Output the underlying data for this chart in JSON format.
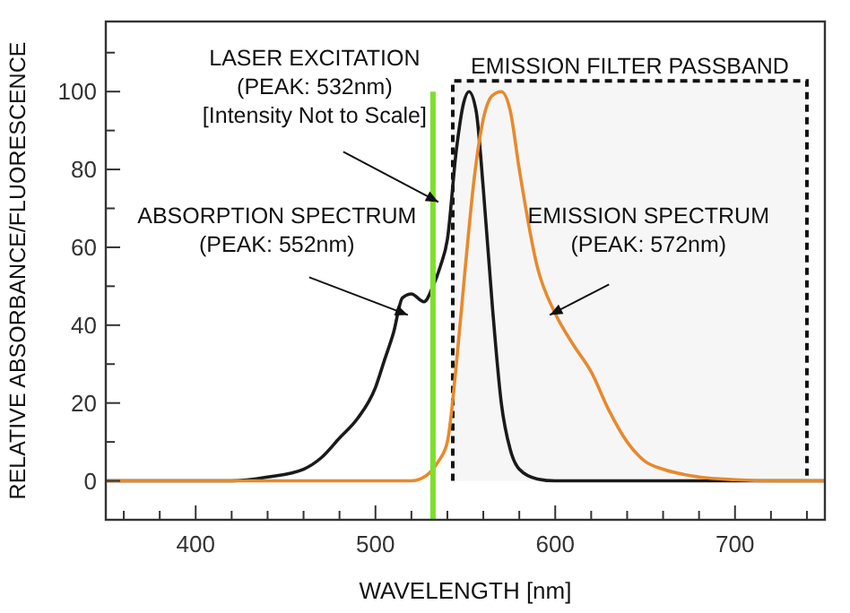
{
  "chart_data": {
    "type": "line",
    "xlabel": "WAVELENGTH [nm]",
    "ylabel": "RELATIVE ABSORBANCE/FLUORESCENCE",
    "xlim": [
      350,
      750
    ],
    "ylim": [
      -10,
      118
    ],
    "xticks": [
      {
        "value": 360,
        "label": null
      },
      {
        "value": 380,
        "label": null
      },
      400,
      {
        "value": 420,
        "label": null
      },
      {
        "value": 440,
        "label": null
      },
      {
        "value": 460,
        "label": null
      },
      {
        "value": 480,
        "label": null
      },
      500,
      {
        "value": 520,
        "label": null
      },
      {
        "value": 540,
        "label": null
      },
      {
        "value": 560,
        "label": null
      },
      {
        "value": 580,
        "label": null
      },
      600,
      {
        "value": 620,
        "label": null
      },
      {
        "value": 640,
        "label": null
      },
      {
        "value": 660,
        "label": null
      },
      {
        "value": 680,
        "label": null
      },
      700,
      {
        "value": 720,
        "label": null
      },
      {
        "value": 740,
        "label": null
      }
    ],
    "yticks": [
      {
        "value": -10,
        "label": null
      },
      0,
      {
        "value": 10,
        "label": null
      },
      20,
      {
        "value": 30,
        "label": null
      },
      40,
      {
        "value": 50,
        "label": null
      },
      60,
      {
        "value": 70,
        "label": null
      },
      80,
      {
        "value": 90,
        "label": null
      },
      100,
      {
        "value": 110,
        "label": null
      }
    ],
    "grid": false,
    "marker": "none",
    "line_style": "solid",
    "series": [
      {
        "color": "#1a1a1a",
        "x": [
          350,
          420,
          440,
          460,
          470,
          480,
          490,
          500,
          505,
          510,
          515,
          520,
          527,
          532,
          536,
          540,
          545,
          549,
          552,
          556,
          560,
          565,
          570,
          575,
          580,
          590,
          600,
          750
        ],
        "values": [
          0,
          0,
          1,
          3,
          6,
          11,
          16,
          24,
          31,
          38,
          47,
          48,
          46,
          50,
          55,
          62,
          85,
          97,
          100,
          95,
          75,
          45,
          20,
          8,
          3,
          0.5,
          0,
          0
        ]
      },
      {
        "color": "#e8892c",
        "x": [
          350,
          520,
          525,
          530,
          535,
          540,
          545,
          550,
          555,
          560,
          565,
          570,
          575,
          580,
          590,
          600,
          610,
          620,
          630,
          640,
          650,
          660,
          680,
          700,
          720,
          750
        ],
        "values": [
          0,
          0,
          0.5,
          2,
          5,
          10,
          30,
          55,
          78,
          93,
          99,
          100,
          95,
          80,
          55,
          43,
          35,
          28,
          18,
          10,
          5,
          3,
          1,
          0.3,
          0,
          0
        ]
      }
    ],
    "ref_lines": [
      {
        "axis": "x",
        "value": 532,
        "color": "#7de02a"
      }
    ],
    "bands": [
      {
        "axis": "x",
        "from": 543,
        "to": 740,
        "label": "EMISSION FILTER PASSBAND",
        "color": "#f6f6f6"
      }
    ],
    "annotations": [
      {
        "text": "LASER EXCITATION\n(PEAK: 532nm)\n[Intensity Not to Scale]",
        "x": 532,
        "y": 73
      },
      {
        "text": "ABSORPTION SPECTRUM\n(PEAK: 552nm)",
        "x": 515,
        "y": 44
      },
      {
        "text": "EMISSION SPECTRUM\n(PEAK: 572nm)",
        "x": 600,
        "y": 44
      }
    ]
  }
}
